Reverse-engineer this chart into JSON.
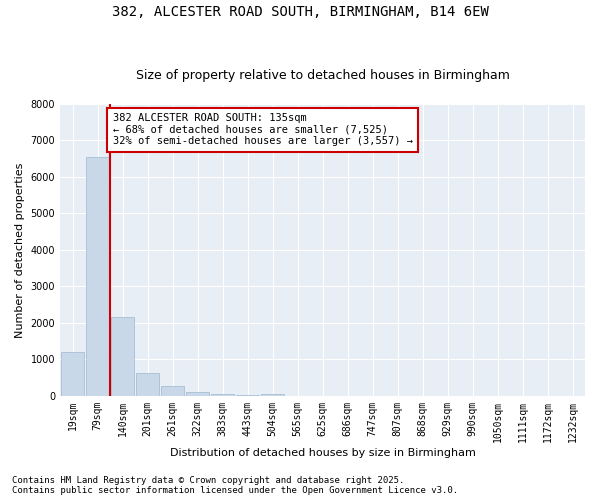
{
  "title_line1": "382, ALCESTER ROAD SOUTH, BIRMINGHAM, B14 6EW",
  "title_line2": "Size of property relative to detached houses in Birmingham",
  "xlabel": "Distribution of detached houses by size in Birmingham",
  "ylabel": "Number of detached properties",
  "categories": [
    "19sqm",
    "79sqm",
    "140sqm",
    "201sqm",
    "261sqm",
    "322sqm",
    "383sqm",
    "443sqm",
    "504sqm",
    "565sqm",
    "625sqm",
    "686sqm",
    "747sqm",
    "807sqm",
    "868sqm",
    "929sqm",
    "990sqm",
    "1050sqm",
    "1111sqm",
    "1172sqm",
    "1232sqm"
  ],
  "values": [
    1200,
    6550,
    2150,
    620,
    270,
    120,
    50,
    20,
    50,
    0,
    0,
    0,
    0,
    0,
    0,
    0,
    0,
    0,
    0,
    0,
    0
  ],
  "bar_color": "#c8d8e8",
  "bar_edge_color": "#a0b8d0",
  "vline_x": 1.5,
  "vline_color": "#cc0000",
  "annotation_text": "382 ALCESTER ROAD SOUTH: 135sqm\n← 68% of detached houses are smaller (7,525)\n32% of semi-detached houses are larger (3,557) →",
  "annotation_box_color": "#ffffff",
  "annotation_box_edge": "#cc0000",
  "ylim": [
    0,
    8000
  ],
  "yticks": [
    0,
    1000,
    2000,
    3000,
    4000,
    5000,
    6000,
    7000,
    8000
  ],
  "footer_line1": "Contains HM Land Registry data © Crown copyright and database right 2025.",
  "footer_line2": "Contains public sector information licensed under the Open Government Licence v3.0.",
  "bg_color": "#ffffff",
  "plot_bg_color": "#e8eef5",
  "grid_color": "#ffffff",
  "title_fontsize": 10,
  "subtitle_fontsize": 9,
  "axis_label_fontsize": 8,
  "tick_fontsize": 7,
  "annotation_fontsize": 7.5,
  "footer_fontsize": 6.5
}
